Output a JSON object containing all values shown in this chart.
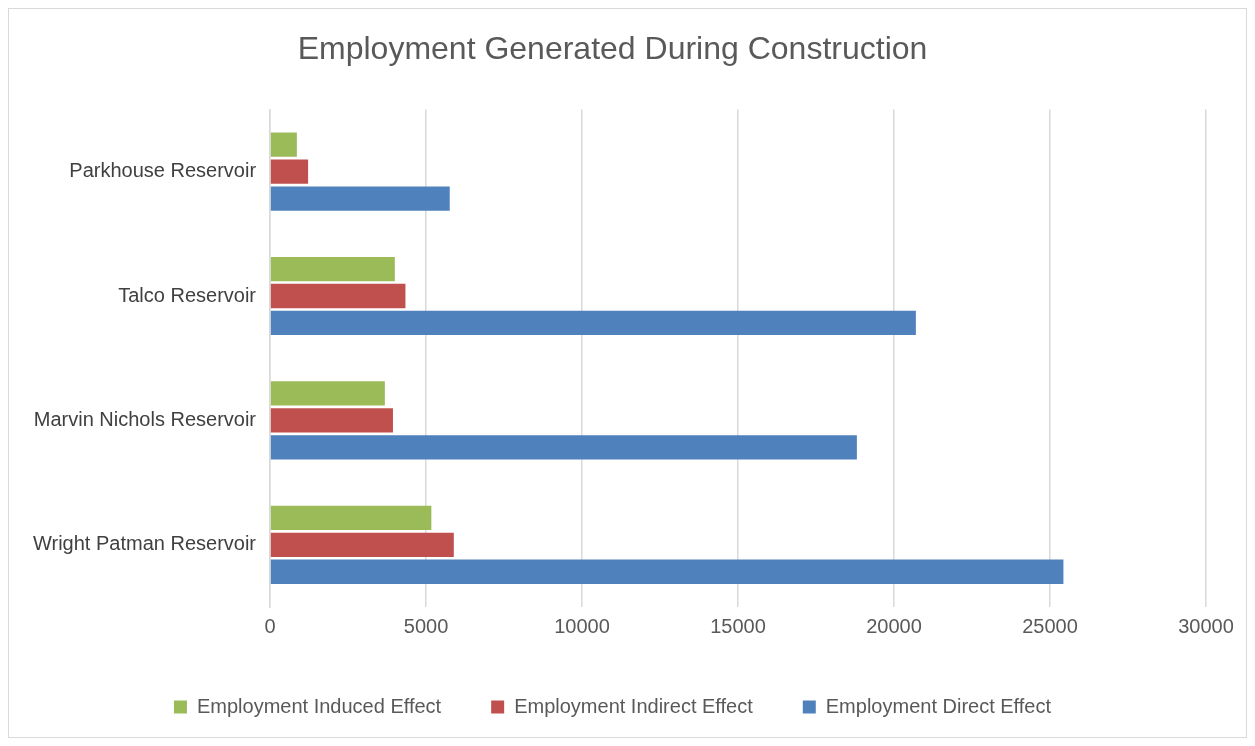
{
  "chart_data": {
    "type": "bar",
    "orientation": "horizontal",
    "title": "Employment Generated During Construction",
    "categories": [
      "Parkhouse Reservoir",
      "Talco Reservoir",
      "Marvin Nichols Reservoir",
      "Wright Patman Reservoir"
    ],
    "series": [
      {
        "name": "Employment Induced Effect",
        "color": "#9bbb59",
        "values": [
          860,
          4000,
          3680,
          5170
        ]
      },
      {
        "name": "Employment Indirect Effect",
        "color": "#c0504d",
        "values": [
          1220,
          4340,
          3940,
          5890
        ]
      },
      {
        "name": "Employment Direct Effect",
        "color": "#4f81bd",
        "values": [
          5760,
          20700,
          18810,
          25430
        ]
      }
    ],
    "xlim": [
      0,
      30000
    ],
    "xticks": [
      0,
      5000,
      10000,
      15000,
      20000,
      25000,
      30000
    ],
    "grid": "x",
    "legend": "bottom"
  }
}
